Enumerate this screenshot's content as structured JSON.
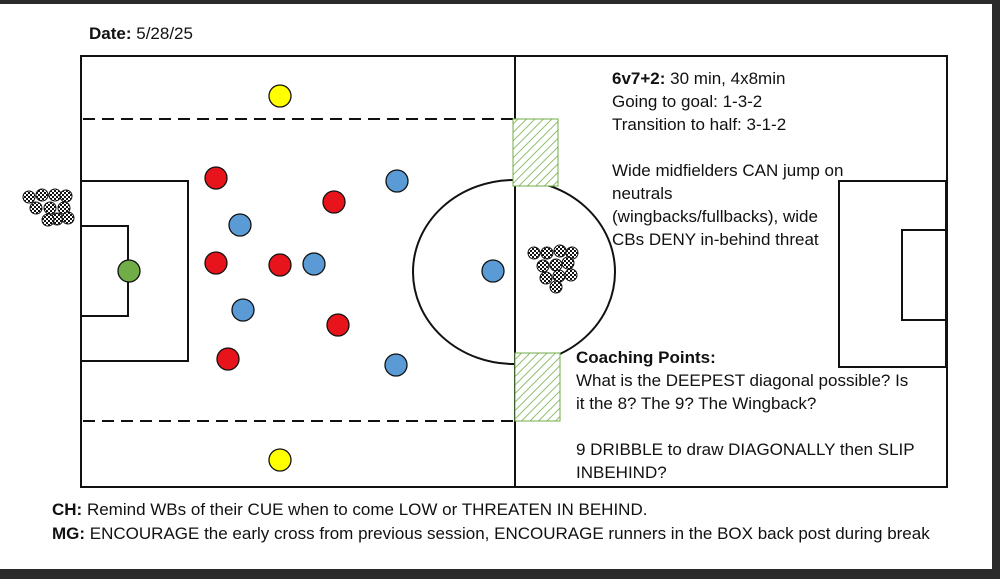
{
  "header": {
    "date_label": "Date:",
    "date_value": "5/28/25"
  },
  "colors": {
    "red_team": "#e8141c",
    "blue_team": "#5b9bd5",
    "neutral": "#ffff00",
    "goalkeeper": "#70ad47",
    "zone_hatch": "#70ad47"
  },
  "session": {
    "title": "6v7+2:",
    "title_detail": "30 min, 4x8min",
    "lines": [
      "Going to goal: 1-3-2",
      "Transition to half: 3-1-2",
      "",
      "Wide midfielders CAN jump on",
      "neutrals",
      "(wingbacks/fullbacks), wide",
      "CBs DENY in-behind threat"
    ]
  },
  "coaching": {
    "title": "Coaching Points:",
    "lines": [
      "What is the DEEPEST diagonal possible? Is",
      "it the 8? The 9? The Wingback?",
      "",
      "9 DRIBBLE to draw DIAGONALLY then SLIP",
      "INBEHIND?"
    ]
  },
  "notes": [
    {
      "label": "CH:",
      "text": "Remind WBs of their CUE when to come LOW or THREATEN IN BEHIND."
    },
    {
      "label": "MG:",
      "text": "ENCOURAGE the early cross from previous session, ENCOURAGE runners in the BOX back post during break"
    }
  ],
  "equipment": {
    "ball_pile_icon": "soccer-ball-pile-icon",
    "mini_goal_zone_icon": "hatched-zone-icon"
  }
}
